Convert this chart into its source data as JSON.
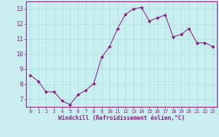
{
  "x": [
    0,
    1,
    2,
    3,
    4,
    5,
    6,
    7,
    8,
    9,
    10,
    11,
    12,
    13,
    14,
    15,
    16,
    17,
    18,
    19,
    20,
    21,
    22,
    23
  ],
  "y": [
    8.6,
    8.2,
    7.5,
    7.5,
    6.9,
    6.65,
    7.3,
    7.6,
    8.05,
    9.8,
    10.5,
    11.7,
    12.65,
    13.0,
    13.1,
    12.2,
    12.4,
    12.6,
    11.15,
    11.3,
    11.7,
    10.75,
    10.75,
    10.5
  ],
  "line_color": "#882288",
  "marker": "D",
  "marker_size": 2.2,
  "bg_color": "#c8eef0",
  "grid_color": "#aadddd",
  "xlabel": "Windchill (Refroidissement éolien,°C)",
  "xlim": [
    -0.5,
    23.5
  ],
  "ylim": [
    6.5,
    13.5
  ],
  "yticks": [
    7,
    8,
    9,
    10,
    11,
    12,
    13
  ],
  "xticks": [
    0,
    1,
    2,
    3,
    4,
    5,
    6,
    7,
    8,
    9,
    10,
    11,
    12,
    13,
    14,
    15,
    16,
    17,
    18,
    19,
    20,
    21,
    22,
    23
  ],
  "tick_color": "#882288",
  "label_color": "#882288"
}
